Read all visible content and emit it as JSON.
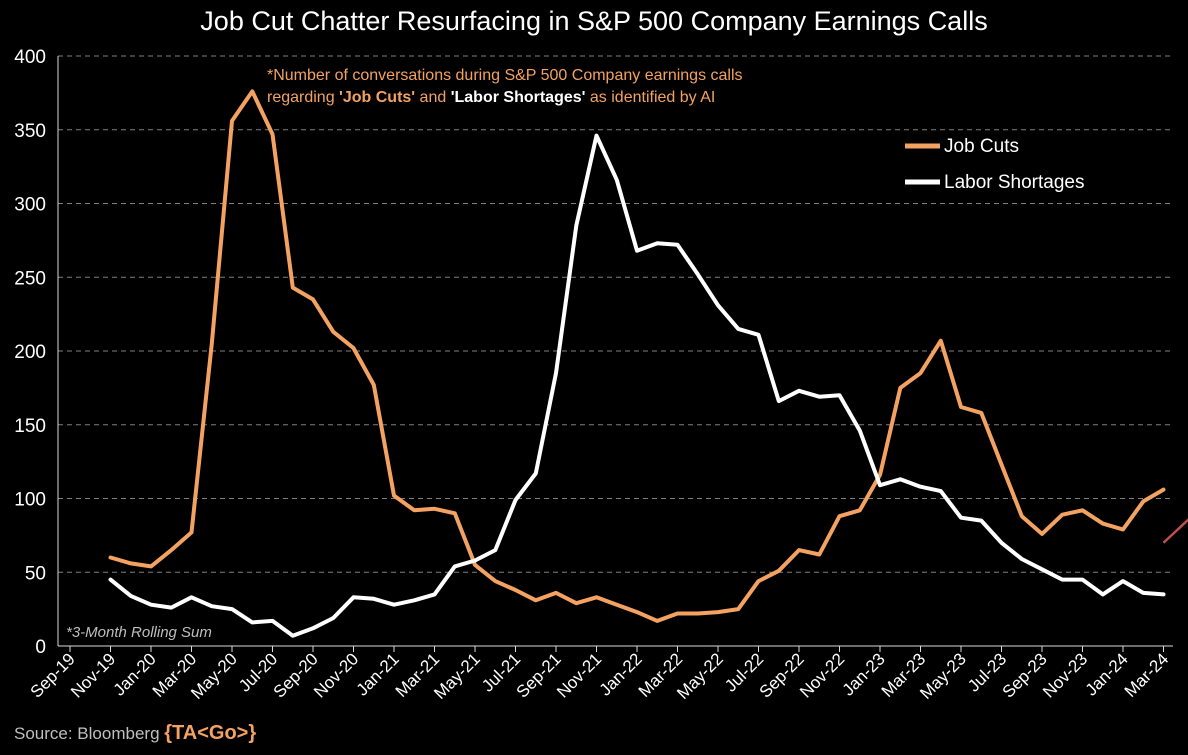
{
  "chart_data": {
    "type": "line",
    "title": "Job Cut Chatter Resurfacing in S&P 500 Company Earnings Calls",
    "annotation": {
      "line1": "*Number of conversations during S&P 500 Company earnings calls",
      "line2_prefix": "regarding ",
      "term1": "'Job Cuts'",
      "and": " and ",
      "term2": "'Labor Shortages'",
      "line2_suffix": " as identified by AI"
    },
    "footnote": "*3-Month Rolling Sum",
    "ylim": [
      0,
      400
    ],
    "yticks": [
      0,
      50,
      100,
      150,
      200,
      250,
      300,
      350,
      400
    ],
    "x_ticks": [
      "Sep-19",
      "Nov-19",
      "Jan-20",
      "Mar-20",
      "May-20",
      "Jul-20",
      "Sep-20",
      "Nov-20",
      "Jan-21",
      "Mar-21",
      "May-21",
      "Jul-21",
      "Sep-21",
      "Nov-21",
      "Jan-22",
      "Mar-22",
      "May-22",
      "Jul-22",
      "Sep-22",
      "Nov-22",
      "Jan-23",
      "Mar-23",
      "May-23",
      "Jul-23",
      "Sep-23",
      "Nov-23",
      "Jan-24",
      "Mar-24"
    ],
    "legend": {
      "position": "top-right"
    },
    "series": [
      {
        "name": "Job Cuts",
        "color": "#f4a261",
        "start_month_index": 2,
        "values": [
          60,
          56,
          54,
          65,
          77,
          205,
          356,
          376,
          347,
          243,
          235,
          213,
          202,
          177,
          102,
          92,
          93,
          90,
          55,
          44,
          38,
          31,
          36,
          29,
          33,
          28,
          23,
          17,
          22,
          22,
          23,
          25,
          44,
          51,
          65,
          62,
          88,
          92,
          116,
          175,
          185,
          207,
          162,
          158,
          123,
          88,
          76,
          89,
          92,
          83,
          79,
          98,
          106
        ]
      },
      {
        "name": "Labor Shortages",
        "color": "#ffffff",
        "start_month_index": 2,
        "values": [
          45,
          34,
          28,
          26,
          33,
          27,
          25,
          16,
          17,
          7,
          12,
          19,
          33,
          32,
          28,
          31,
          35,
          54,
          58,
          65,
          99,
          117,
          185,
          285,
          346,
          316,
          268,
          273,
          272,
          252,
          231,
          215,
          211,
          166,
          173,
          169,
          170,
          146,
          109,
          113,
          108,
          105,
          87,
          85,
          70,
          59,
          52,
          45,
          45,
          35,
          44,
          36,
          35
        ]
      }
    ],
    "trend_arrow": {
      "color": "#c0504d",
      "from_month_index": 54,
      "from_value": 70,
      "to_month_index": 56.5,
      "to_value": 102
    }
  },
  "source": {
    "label": "Source: Bloomberg ",
    "tag": "{TA<Go>}"
  }
}
